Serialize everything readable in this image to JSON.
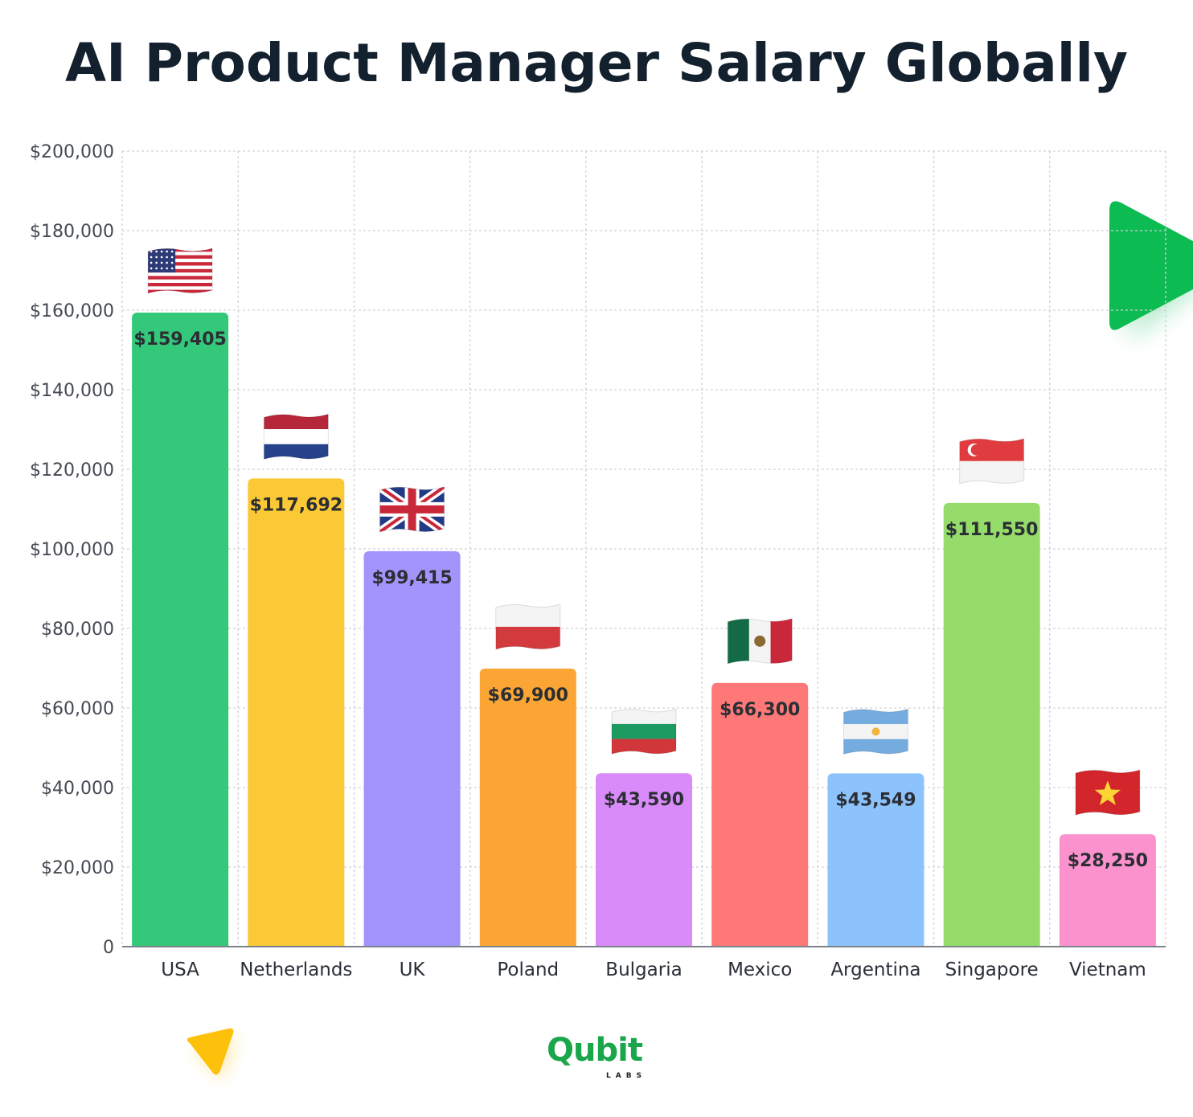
{
  "chart_data": {
    "type": "bar",
    "title": "AI Product Manager Salary Globally",
    "xlabel": "",
    "ylabel": "",
    "ylim": [
      0,
      200000
    ],
    "yticks": [
      "0",
      "$20,000",
      "$40,000",
      "$60,000",
      "$80,000",
      "$100,000",
      "$120,000",
      "$140,000",
      "$160,000",
      "$180,000",
      "$200,000"
    ],
    "grid": true,
    "legend": "none",
    "categories": [
      "USA",
      "Netherlands",
      "UK",
      "Poland",
      "Bulgaria",
      "Mexico",
      "Argentina",
      "Singapore",
      "Vietnam"
    ],
    "values": [
      159405,
      117692,
      99415,
      69900,
      43590,
      66300,
      43549,
      111550,
      28250
    ],
    "value_labels": [
      "$159,405",
      "$117,692",
      "$99,415",
      "$69,900",
      "$43,590",
      "$66,300",
      "$43,549",
      "$111,550",
      "$28,250"
    ],
    "colors": [
      "#34c97a",
      "#fbc935",
      "#a194fb",
      "#fba535",
      "#d98bfa",
      "#fe7878",
      "#8dc3fd",
      "#95dc6b",
      "#fc92cd"
    ],
    "flag_icons": [
      "flag-usa-icon",
      "flag-netherlands-icon",
      "flag-uk-icon",
      "flag-poland-icon",
      "flag-bulgaria-icon",
      "flag-mexico-icon",
      "flag-argentina-icon",
      "flag-singapore-icon",
      "flag-vietnam-icon"
    ]
  },
  "logo": {
    "main": "Qubit",
    "sub": "LABS"
  },
  "decor": {
    "accent_green": "#0dbb53",
    "accent_yellow": "#fdc00b"
  }
}
